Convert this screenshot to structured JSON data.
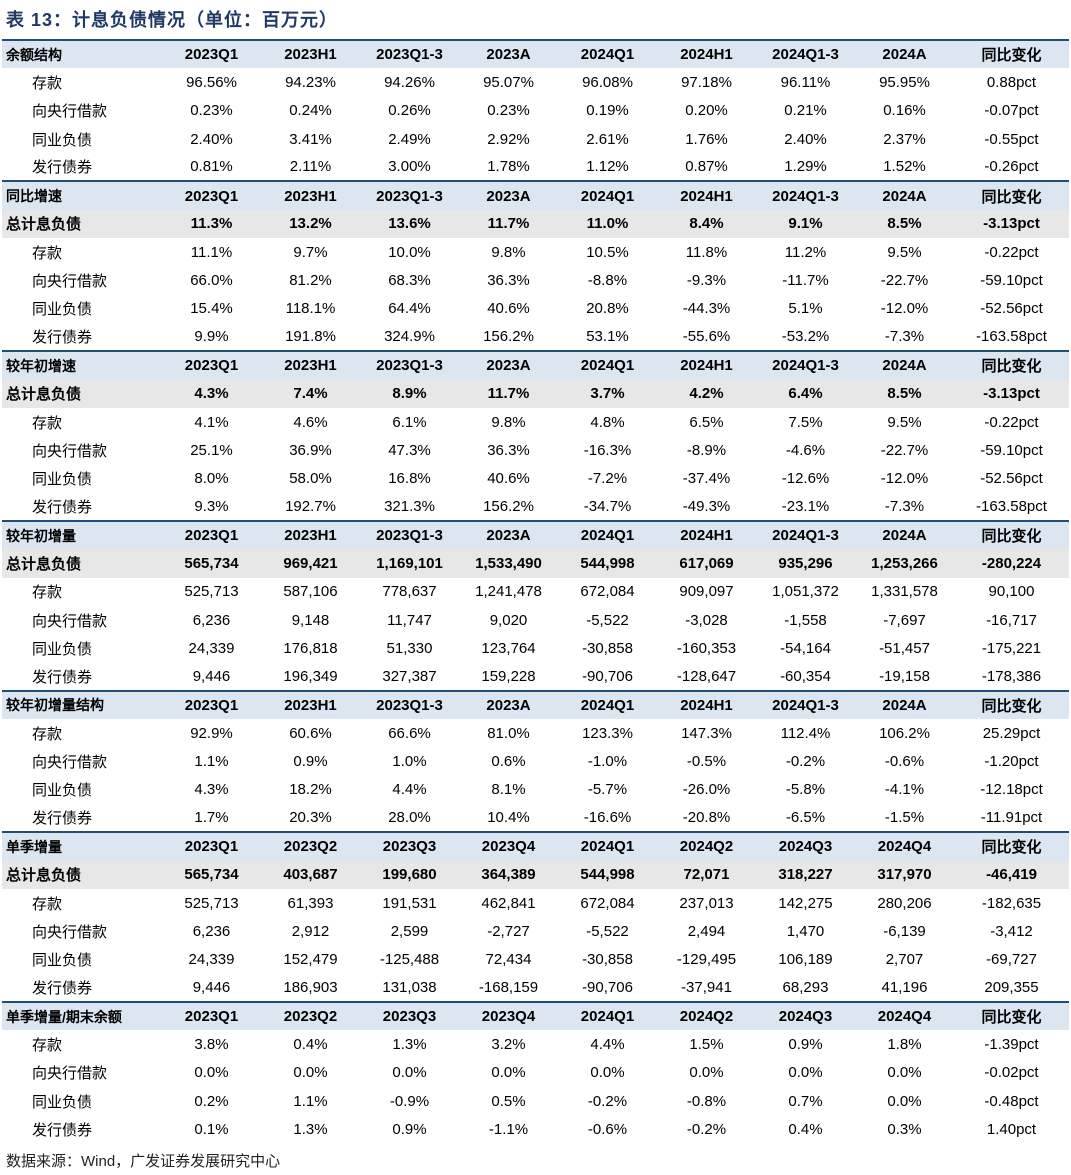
{
  "title": "表 13：计息负债情况（单位：百万元）",
  "sections": [
    {
      "header": [
        "余额结构",
        "2023Q1",
        "2023H1",
        "2023Q1-3",
        "2023A",
        "2024Q1",
        "2024H1",
        "2024Q1-3",
        "2024A",
        "同比变化"
      ],
      "rows": [
        [
          "存款",
          "96.56%",
          "94.23%",
          "94.26%",
          "95.07%",
          "96.08%",
          "97.18%",
          "96.11%",
          "95.95%",
          "0.88pct"
        ],
        [
          "向央行借款",
          "0.23%",
          "0.24%",
          "0.26%",
          "0.23%",
          "0.19%",
          "0.20%",
          "0.21%",
          "0.16%",
          "-0.07pct"
        ],
        [
          "同业负债",
          "2.40%",
          "3.41%",
          "2.49%",
          "2.92%",
          "2.61%",
          "1.76%",
          "2.40%",
          "2.37%",
          "-0.55pct"
        ],
        [
          "发行债券",
          "0.81%",
          "2.11%",
          "3.00%",
          "1.78%",
          "1.12%",
          "0.87%",
          "1.29%",
          "1.52%",
          "-0.26pct"
        ]
      ]
    },
    {
      "header": [
        "同比增速",
        "2023Q1",
        "2023H1",
        "2023Q1-3",
        "2023A",
        "2024Q1",
        "2024H1",
        "2024Q1-3",
        "2024A",
        "同比变化"
      ],
      "total": [
        "总计息负债",
        "11.3%",
        "13.2%",
        "13.6%",
        "11.7%",
        "11.0%",
        "8.4%",
        "9.1%",
        "8.5%",
        "-3.13pct"
      ],
      "rows": [
        [
          "存款",
          "11.1%",
          "9.7%",
          "10.0%",
          "9.8%",
          "10.5%",
          "11.8%",
          "11.2%",
          "9.5%",
          "-0.22pct"
        ],
        [
          "向央行借款",
          "66.0%",
          "81.2%",
          "68.3%",
          "36.3%",
          "-8.8%",
          "-9.3%",
          "-11.7%",
          "-22.7%",
          "-59.10pct"
        ],
        [
          "同业负债",
          "15.4%",
          "118.1%",
          "64.4%",
          "40.6%",
          "20.8%",
          "-44.3%",
          "5.1%",
          "-12.0%",
          "-52.56pct"
        ],
        [
          "发行债券",
          "9.9%",
          "191.8%",
          "324.9%",
          "156.2%",
          "53.1%",
          "-55.6%",
          "-53.2%",
          "-7.3%",
          "-163.58pct"
        ]
      ]
    },
    {
      "header": [
        "较年初增速",
        "2023Q1",
        "2023H1",
        "2023Q1-3",
        "2023A",
        "2024Q1",
        "2024H1",
        "2024Q1-3",
        "2024A",
        "同比变化"
      ],
      "total": [
        "总计息负债",
        "4.3%",
        "7.4%",
        "8.9%",
        "11.7%",
        "3.7%",
        "4.2%",
        "6.4%",
        "8.5%",
        "-3.13pct"
      ],
      "rows": [
        [
          "存款",
          "4.1%",
          "4.6%",
          "6.1%",
          "9.8%",
          "4.8%",
          "6.5%",
          "7.5%",
          "9.5%",
          "-0.22pct"
        ],
        [
          "向央行借款",
          "25.1%",
          "36.9%",
          "47.3%",
          "36.3%",
          "-16.3%",
          "-8.9%",
          "-4.6%",
          "-22.7%",
          "-59.10pct"
        ],
        [
          "同业负债",
          "8.0%",
          "58.0%",
          "16.8%",
          "40.6%",
          "-7.2%",
          "-37.4%",
          "-12.6%",
          "-12.0%",
          "-52.56pct"
        ],
        [
          "发行债券",
          "9.3%",
          "192.7%",
          "321.3%",
          "156.2%",
          "-34.7%",
          "-49.3%",
          "-23.1%",
          "-7.3%",
          "-163.58pct"
        ]
      ]
    },
    {
      "header": [
        "较年初增量",
        "2023Q1",
        "2023H1",
        "2023Q1-3",
        "2023A",
        "2024Q1",
        "2024H1",
        "2024Q1-3",
        "2024A",
        "同比变化"
      ],
      "total": [
        "总计息负债",
        "565,734",
        "969,421",
        "1,169,101",
        "1,533,490",
        "544,998",
        "617,069",
        "935,296",
        "1,253,266",
        "-280,224"
      ],
      "rows": [
        [
          "存款",
          "525,713",
          "587,106",
          "778,637",
          "1,241,478",
          "672,084",
          "909,097",
          "1,051,372",
          "1,331,578",
          "90,100"
        ],
        [
          "向央行借款",
          "6,236",
          "9,148",
          "11,747",
          "9,020",
          "-5,522",
          "-3,028",
          "-1,558",
          "-7,697",
          "-16,717"
        ],
        [
          "同业负债",
          "24,339",
          "176,818",
          "51,330",
          "123,764",
          "-30,858",
          "-160,353",
          "-54,164",
          "-51,457",
          "-175,221"
        ],
        [
          "发行债券",
          "9,446",
          "196,349",
          "327,387",
          "159,228",
          "-90,706",
          "-128,647",
          "-60,354",
          "-19,158",
          "-178,386"
        ]
      ]
    },
    {
      "header": [
        "较年初增量结构",
        "2023Q1",
        "2023H1",
        "2023Q1-3",
        "2023A",
        "2024Q1",
        "2024H1",
        "2024Q1-3",
        "2024A",
        "同比变化"
      ],
      "rows": [
        [
          "存款",
          "92.9%",
          "60.6%",
          "66.6%",
          "81.0%",
          "123.3%",
          "147.3%",
          "112.4%",
          "106.2%",
          "25.29pct"
        ],
        [
          "向央行借款",
          "1.1%",
          "0.9%",
          "1.0%",
          "0.6%",
          "-1.0%",
          "-0.5%",
          "-0.2%",
          "-0.6%",
          "-1.20pct"
        ],
        [
          "同业负债",
          "4.3%",
          "18.2%",
          "4.4%",
          "8.1%",
          "-5.7%",
          "-26.0%",
          "-5.8%",
          "-4.1%",
          "-12.18pct"
        ],
        [
          "发行债券",
          "1.7%",
          "20.3%",
          "28.0%",
          "10.4%",
          "-16.6%",
          "-20.8%",
          "-6.5%",
          "-1.5%",
          "-11.91pct"
        ]
      ]
    },
    {
      "header": [
        "单季增量",
        "2023Q1",
        "2023Q2",
        "2023Q3",
        "2023Q4",
        "2024Q1",
        "2024Q2",
        "2024Q3",
        "2024Q4",
        "同比变化"
      ],
      "total": [
        "总计息负债",
        "565,734",
        "403,687",
        "199,680",
        "364,389",
        "544,998",
        "72,071",
        "318,227",
        "317,970",
        "-46,419"
      ],
      "rows": [
        [
          "存款",
          "525,713",
          "61,393",
          "191,531",
          "462,841",
          "672,084",
          "237,013",
          "142,275",
          "280,206",
          "-182,635"
        ],
        [
          "向央行借款",
          "6,236",
          "2,912",
          "2,599",
          "-2,727",
          "-5,522",
          "2,494",
          "1,470",
          "-6,139",
          "-3,412"
        ],
        [
          "同业负债",
          "24,339",
          "152,479",
          "-125,488",
          "72,434",
          "-30,858",
          "-129,495",
          "106,189",
          "2,707",
          "-69,727"
        ],
        [
          "发行债券",
          "9,446",
          "186,903",
          "131,038",
          "-168,159",
          "-90,706",
          "-37,941",
          "68,293",
          "41,196",
          "209,355"
        ]
      ]
    },
    {
      "header": [
        "单季增量/期末余额",
        "2023Q1",
        "2023Q2",
        "2023Q3",
        "2023Q4",
        "2024Q1",
        "2024Q2",
        "2024Q3",
        "2024Q4",
        "同比变化"
      ],
      "rows": [
        [
          "存款",
          "3.8%",
          "0.4%",
          "1.3%",
          "3.2%",
          "4.4%",
          "1.5%",
          "0.9%",
          "1.8%",
          "-1.39pct"
        ],
        [
          "向央行借款",
          "0.0%",
          "0.0%",
          "0.0%",
          "0.0%",
          "0.0%",
          "0.0%",
          "0.0%",
          "0.0%",
          "-0.02pct"
        ],
        [
          "同业负债",
          "0.2%",
          "1.1%",
          "-0.9%",
          "0.5%",
          "-0.2%",
          "-0.8%",
          "0.7%",
          "0.0%",
          "-0.48pct"
        ],
        [
          "发行债券",
          "0.1%",
          "1.3%",
          "0.9%",
          "-1.1%",
          "-0.6%",
          "-0.2%",
          "0.4%",
          "0.3%",
          "1.40pct"
        ]
      ]
    }
  ],
  "source": "数据来源：Wind，广发证券发展研究中心"
}
